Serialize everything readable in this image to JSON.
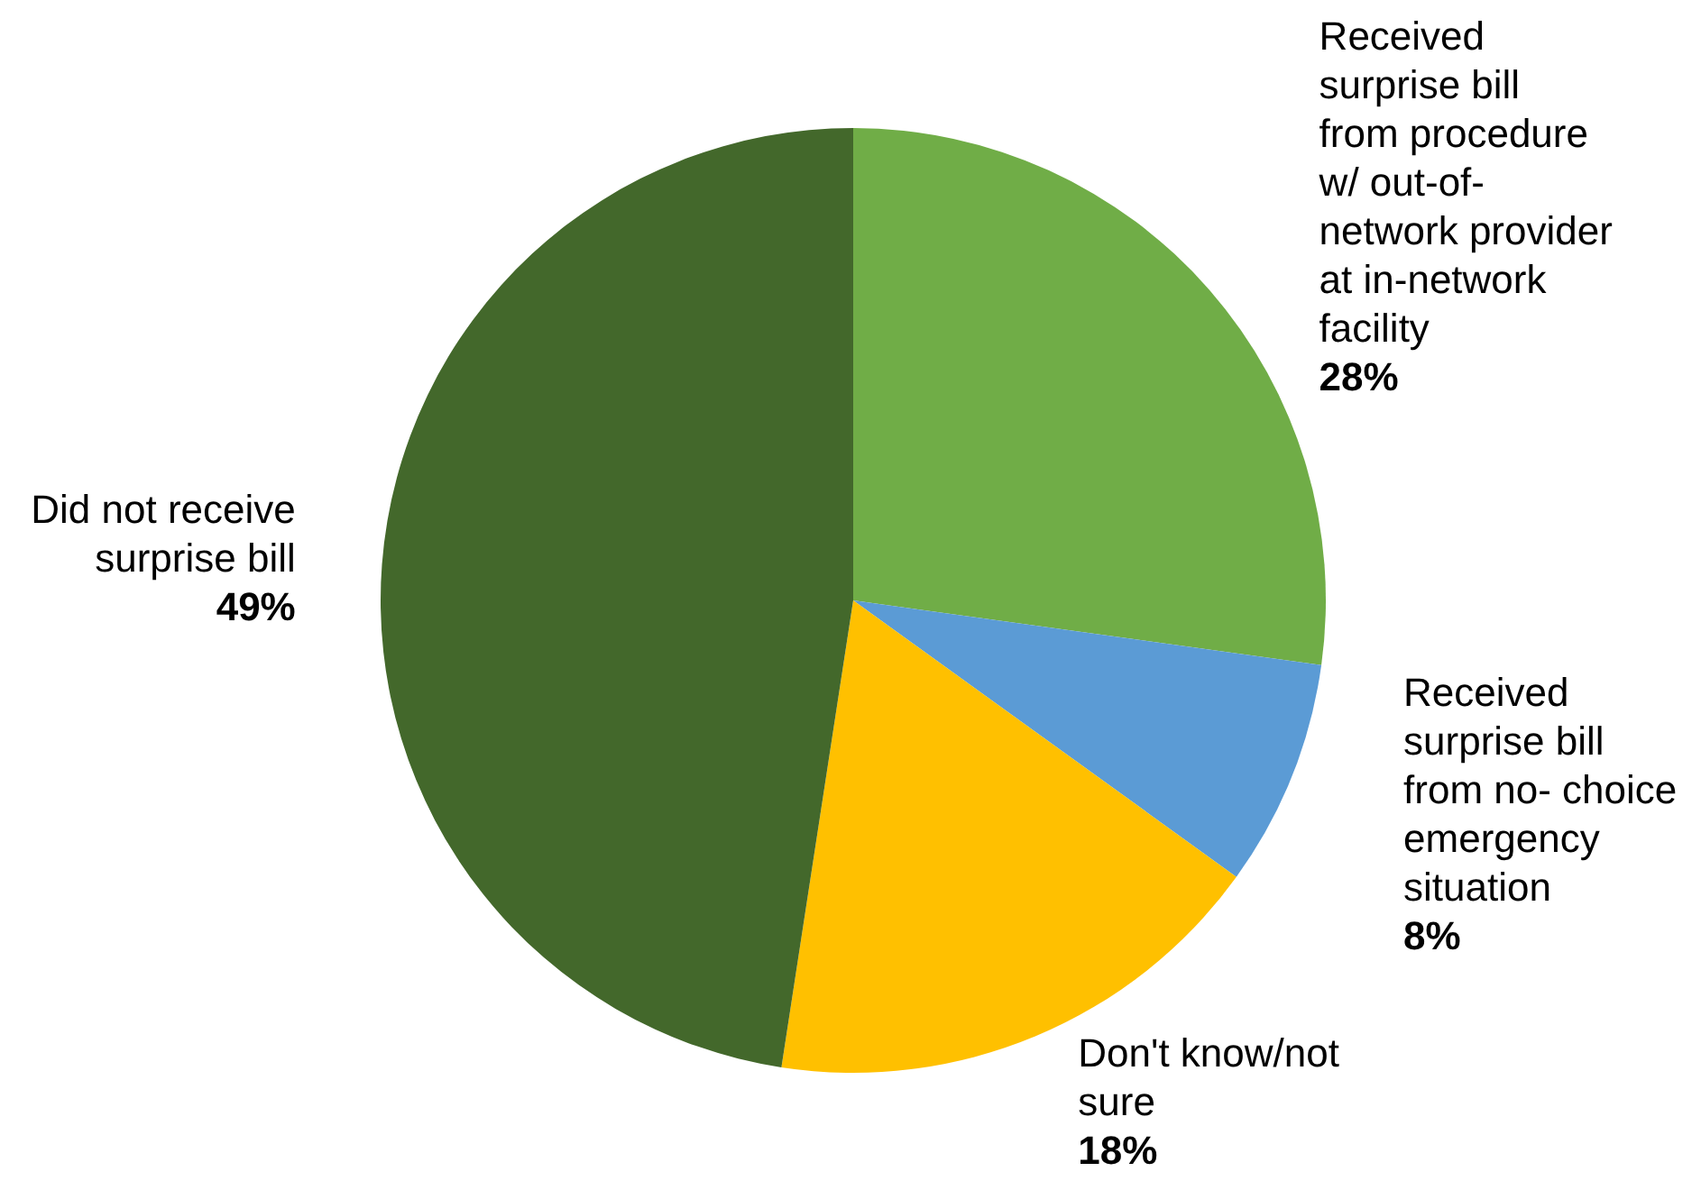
{
  "chart_data": {
    "type": "pie",
    "categories": [
      "Received surprise bill from procedure w/ out-of-network provider at in-network facility",
      "Received surprise bill from no- choice emergency situation",
      "Don't know/not sure",
      "Did not receive surprise bill"
    ],
    "values": [
      28,
      8,
      18,
      49
    ],
    "value_labels": [
      "28%",
      "8%",
      "18%",
      "49%"
    ],
    "colors": [
      "#70ad47",
      "#5b9bd5",
      "#ffc000",
      "#43682b"
    ]
  }
}
